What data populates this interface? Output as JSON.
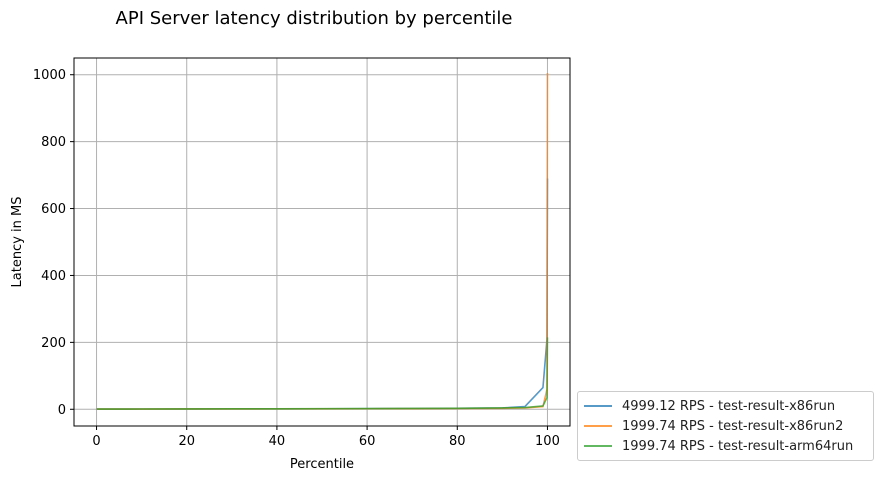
{
  "chart_data": {
    "type": "line",
    "title": "API Server latency distribution by percentile",
    "xlabel": "Percentile",
    "ylabel": "Latency in MS",
    "xlim": [
      -5,
      105
    ],
    "ylim": [
      -50,
      1050
    ],
    "xticks": [
      0,
      20,
      40,
      60,
      80,
      100
    ],
    "yticks": [
      0,
      200,
      400,
      600,
      800,
      1000
    ],
    "grid": true,
    "legend_position": "outside-bottom-right",
    "series": [
      {
        "name": "4999.12 RPS - test-result-x86run",
        "color": "#1f77b4",
        "x": [
          0,
          10,
          20,
          30,
          40,
          50,
          60,
          70,
          80,
          90,
          95,
          99,
          99.9,
          100
        ],
        "y": [
          0.5,
          0.8,
          1.0,
          1.2,
          1.4,
          1.6,
          1.9,
          2.2,
          2.8,
          4,
          8,
          65,
          210,
          690
        ]
      },
      {
        "name": "1999.74 RPS - test-result-x86run2",
        "color": "#ff7f0e",
        "x": [
          0,
          10,
          20,
          30,
          40,
          50,
          60,
          70,
          80,
          90,
          95,
          99,
          99.9,
          100
        ],
        "y": [
          0.5,
          0.7,
          0.9,
          1.0,
          1.2,
          1.4,
          1.6,
          1.9,
          2.3,
          3,
          4,
          8,
          60,
          1005
        ]
      },
      {
        "name": "1999.74 RPS - test-result-arm64run",
        "color": "#2ca02c",
        "x": [
          0,
          10,
          20,
          30,
          40,
          50,
          60,
          70,
          80,
          90,
          95,
          99,
          99.9,
          100
        ],
        "y": [
          0.5,
          0.8,
          1.0,
          1.3,
          1.5,
          1.8,
          2.1,
          2.5,
          3.0,
          4,
          5,
          10,
          35,
          215
        ]
      }
    ]
  }
}
